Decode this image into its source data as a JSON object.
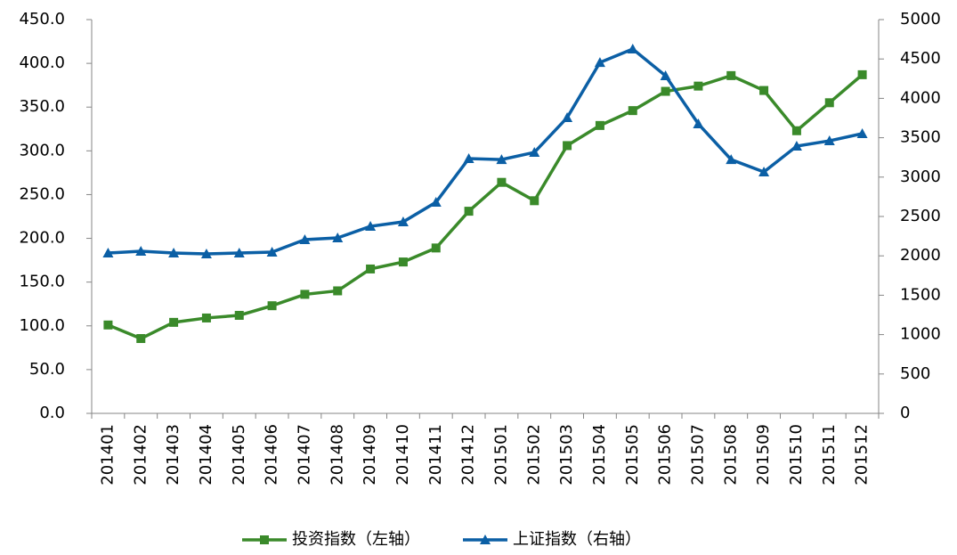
{
  "chart_data": {
    "type": "line",
    "categories": [
      "201401",
      "201402",
      "201403",
      "201404",
      "201405",
      "201406",
      "201407",
      "201408",
      "201409",
      "201410",
      "201411",
      "201412",
      "201501",
      "201502",
      "201503",
      "201504",
      "201505",
      "201506",
      "201507",
      "201508",
      "201509",
      "201510",
      "201511",
      "201512"
    ],
    "series": [
      {
        "name": "投资指数（左轴）",
        "color": "#3a8a2a",
        "marker": "square",
        "values": [
          101,
          85.5,
          104,
          109,
          112,
          123,
          136,
          140,
          165,
          173,
          189,
          231,
          264,
          243,
          306,
          329,
          346,
          368,
          374,
          386,
          369,
          323,
          355,
          387
        ]
      },
      {
        "name": "上证指数（右轴）",
        "color": "#0b5fa5",
        "marker": "triangle",
        "axis": "y2",
        "values": [
          2036,
          2059,
          2036,
          2025,
          2036,
          2047,
          2206,
          2228,
          2375,
          2432,
          2681,
          3235,
          3223,
          3314,
          3755,
          4456,
          4626,
          4287,
          3676,
          3223,
          3065,
          3393,
          3461,
          3552
        ]
      }
    ],
    "ylim": [
      0,
      450
    ],
    "yticks": [
      {
        "value": 0,
        "label": "0.0"
      },
      {
        "value": 50,
        "label": "50.0"
      },
      {
        "value": 100,
        "label": "100.0"
      },
      {
        "value": 150,
        "label": "150.0"
      },
      {
        "value": 200,
        "label": "200.0"
      },
      {
        "value": 250,
        "label": "250.0"
      },
      {
        "value": 300,
        "label": "300.0"
      },
      {
        "value": 350,
        "label": "350.0"
      },
      {
        "value": 400,
        "label": "400.0"
      },
      {
        "value": 450,
        "label": "450.0"
      }
    ],
    "y2lim": [
      0,
      5000
    ],
    "y2ticks": [
      0,
      500,
      1000,
      1500,
      2000,
      2500,
      3000,
      3500,
      4000,
      4500,
      5000
    ],
    "grid": false,
    "legend": "bottom"
  }
}
